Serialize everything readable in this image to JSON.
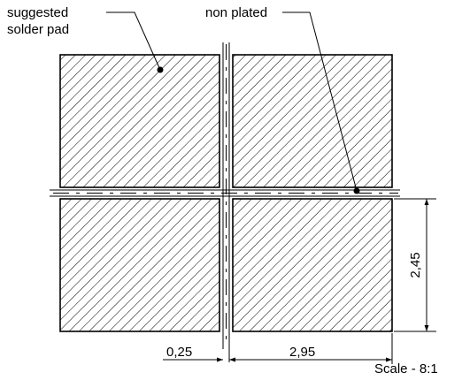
{
  "labels": {
    "pad_line1": "suggested",
    "pad_line2": "solder pad",
    "non_plated": "non plated",
    "scale": "Scale - 8:1"
  },
  "dimensions": {
    "gap": "0,25",
    "pad_width": "2,95",
    "pad_height": "2,45"
  },
  "colors": {
    "line": "#000000",
    "background": "#ffffff"
  }
}
